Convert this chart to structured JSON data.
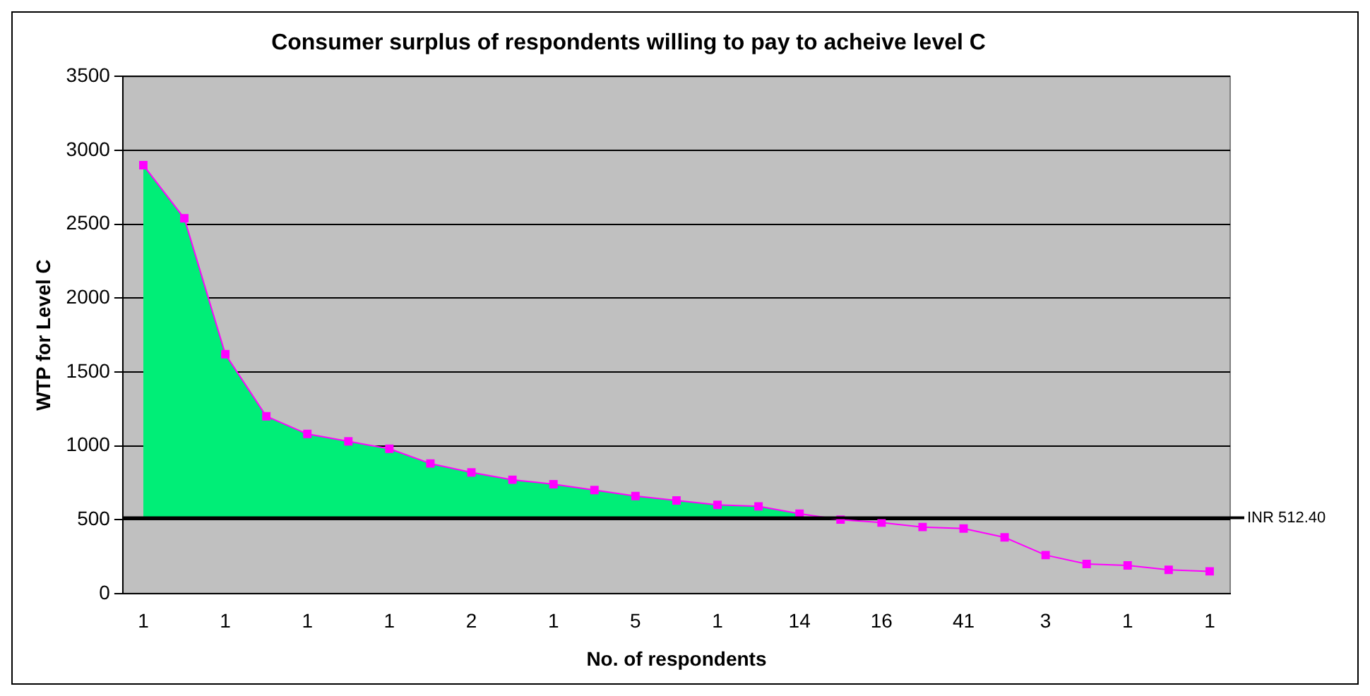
{
  "chart_data": {
    "type": "line",
    "title": "Consumer surplus of respondents willing to pay to acheive level C",
    "xlabel": "No. of respondents",
    "ylabel": "WTP for Level C",
    "categories": [
      "1",
      null,
      "1",
      null,
      "1",
      null,
      "1",
      null,
      "2",
      null,
      "1",
      null,
      "5",
      null,
      "1",
      null,
      "14",
      null,
      "16",
      null,
      "41",
      null,
      "3",
      null,
      "1",
      null,
      "1"
    ],
    "series": [
      {
        "type": "area",
        "color": "#00ee77",
        "marker": "none",
        "values": [
          2900,
          2540,
          1620,
          1200,
          1080,
          1030,
          980,
          880,
          820,
          770,
          740,
          700,
          660,
          630,
          600,
          590,
          540,
          null,
          null,
          null,
          null,
          null,
          null,
          null,
          null,
          null,
          null
        ]
      },
      {
        "color": "#ff00ff",
        "marker": "square",
        "line_style": "solid",
        "values": [
          2900,
          2540,
          1620,
          1200,
          1080,
          1030,
          980,
          880,
          820,
          770,
          740,
          700,
          660,
          630,
          600,
          590,
          540,
          500,
          480,
          450,
          440,
          380,
          260,
          200,
          190,
          160,
          150
        ]
      }
    ],
    "ylim": [
      0,
      3500
    ],
    "yticks": [
      0,
      500,
      1000,
      1500,
      2000,
      2500,
      3000,
      3500
    ],
    "grid": "y",
    "legend": false,
    "ref_lines": [
      {
        "axis": "y",
        "value": 512.4,
        "label": "INR 512.40",
        "color": "#000000"
      }
    ]
  }
}
